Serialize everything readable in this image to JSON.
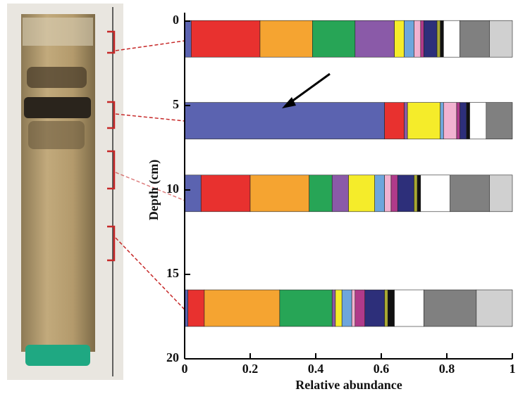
{
  "chart_data": {
    "type": "stacked-barh",
    "xlabel": "Relative abundance",
    "ylabel": "Depth (cm)",
    "xlim": [
      0,
      1
    ],
    "xticks": [
      0,
      0.2,
      0.4,
      0.6,
      0.8,
      1
    ],
    "ylim": [
      0,
      20
    ],
    "yticks": [
      0,
      5,
      10,
      15,
      20
    ],
    "y_inverted": true,
    "y": [
      1.05,
      5.9,
      10.2,
      17.0
    ],
    "series": [
      {
        "color": "#5b63b0",
        "values": [
          0.02,
          0.61,
          0.05,
          0.01
        ]
      },
      {
        "color": "#e8312f",
        "values": [
          0.21,
          0.06,
          0.15,
          0.05
        ]
      },
      {
        "color": "#f5a431",
        "values": [
          0.16,
          0,
          0.18,
          0.23
        ]
      },
      {
        "color": "#27a556",
        "values": [
          0.13,
          0,
          0.07,
          0.16
        ]
      },
      {
        "color": "#8a5aa8",
        "values": [
          0.12,
          0.01,
          0.05,
          0.01
        ]
      },
      {
        "color": "#f5ec2a",
        "values": [
          0.03,
          0.1,
          0.08,
          0.02
        ]
      },
      {
        "color": "#6ea6dc",
        "values": [
          0.03,
          0.01,
          0.03,
          0.03
        ]
      },
      {
        "color": "#f2b2d0",
        "values": [
          0.02,
          0.04,
          0.02,
          0.01
        ]
      },
      {
        "color": "#b03a8a",
        "values": [
          0.01,
          0.01,
          0.02,
          0.03
        ]
      },
      {
        "color": "#2d2f7a",
        "values": [
          0.04,
          0.02,
          0.05,
          0.06
        ]
      },
      {
        "color": "#a8a832",
        "values": [
          0.01,
          0,
          0.01,
          0.01
        ]
      },
      {
        "color": "#111111",
        "values": [
          0.01,
          0.01,
          0.01,
          0.02
        ]
      },
      {
        "color": "#ffffff",
        "values": [
          0.05,
          0.05,
          0.09,
          0.09
        ]
      },
      {
        "color": "#808080",
        "values": [
          0.09,
          0.08,
          0.12,
          0.16
        ]
      },
      {
        "color": "#d0d0d0",
        "values": [
          0.07,
          0,
          0.07,
          0.11
        ]
      }
    ]
  }
}
